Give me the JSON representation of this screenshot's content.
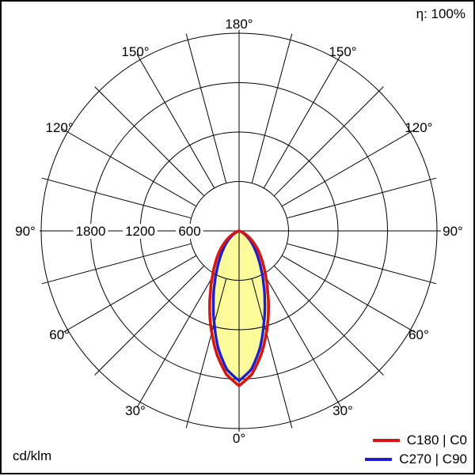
{
  "header": {
    "efficiency": "η: 100%"
  },
  "footer": {
    "unit": "cd/klm"
  },
  "legend": {
    "items": [
      {
        "label": "C180 | C0",
        "color": "#d41616"
      },
      {
        "label": "C270 | C90",
        "color": "#1e1ecc"
      }
    ]
  },
  "chart_data": {
    "type": "line",
    "subtype": "polar-photometric-intensity-curve",
    "unit": "cd/klm",
    "efficiency": "η: 100%",
    "rmax": 2400,
    "radial_rings": [
      600,
      1200,
      1800,
      2400
    ],
    "radial_ring_labels": [
      {
        "value": 1800,
        "text": "1800"
      },
      {
        "value": 1200,
        "text": "1200"
      },
      {
        "value": 600,
        "text": "600"
      }
    ],
    "angle_step_deg": 15,
    "angle_labels": [
      {
        "deg": 0,
        "text": "0°"
      },
      {
        "deg": 30,
        "text": "30°"
      },
      {
        "deg": 60,
        "text": "60°"
      },
      {
        "deg": 90,
        "text": "90°"
      },
      {
        "deg": 120,
        "text": "120°"
      },
      {
        "deg": 150,
        "text": "150°"
      },
      {
        "deg": 180,
        "text": "180°"
      }
    ],
    "gamma_deg": [
      0,
      5,
      10,
      15,
      20,
      25,
      30,
      35,
      40,
      45,
      50,
      55,
      60,
      65,
      70,
      75,
      80
    ],
    "series": [
      {
        "name": "C180 | C0",
        "color": "#d41616",
        "values": [
          1880,
          1750,
          1530,
          1280,
          1040,
          820,
          650,
          515,
          410,
          320,
          240,
          170,
          110,
          60,
          25,
          5,
          0
        ]
      },
      {
        "name": "C270 | C90",
        "color": "#1e1ecc",
        "values": [
          1820,
          1690,
          1450,
          1160,
          910,
          700,
          530,
          405,
          305,
          230,
          165,
          110,
          70,
          35,
          10,
          0,
          0
        ]
      }
    ],
    "beam_fill_color": "#fbfb9b",
    "grid_color": "#000000",
    "legend_position": "bottom-right"
  }
}
